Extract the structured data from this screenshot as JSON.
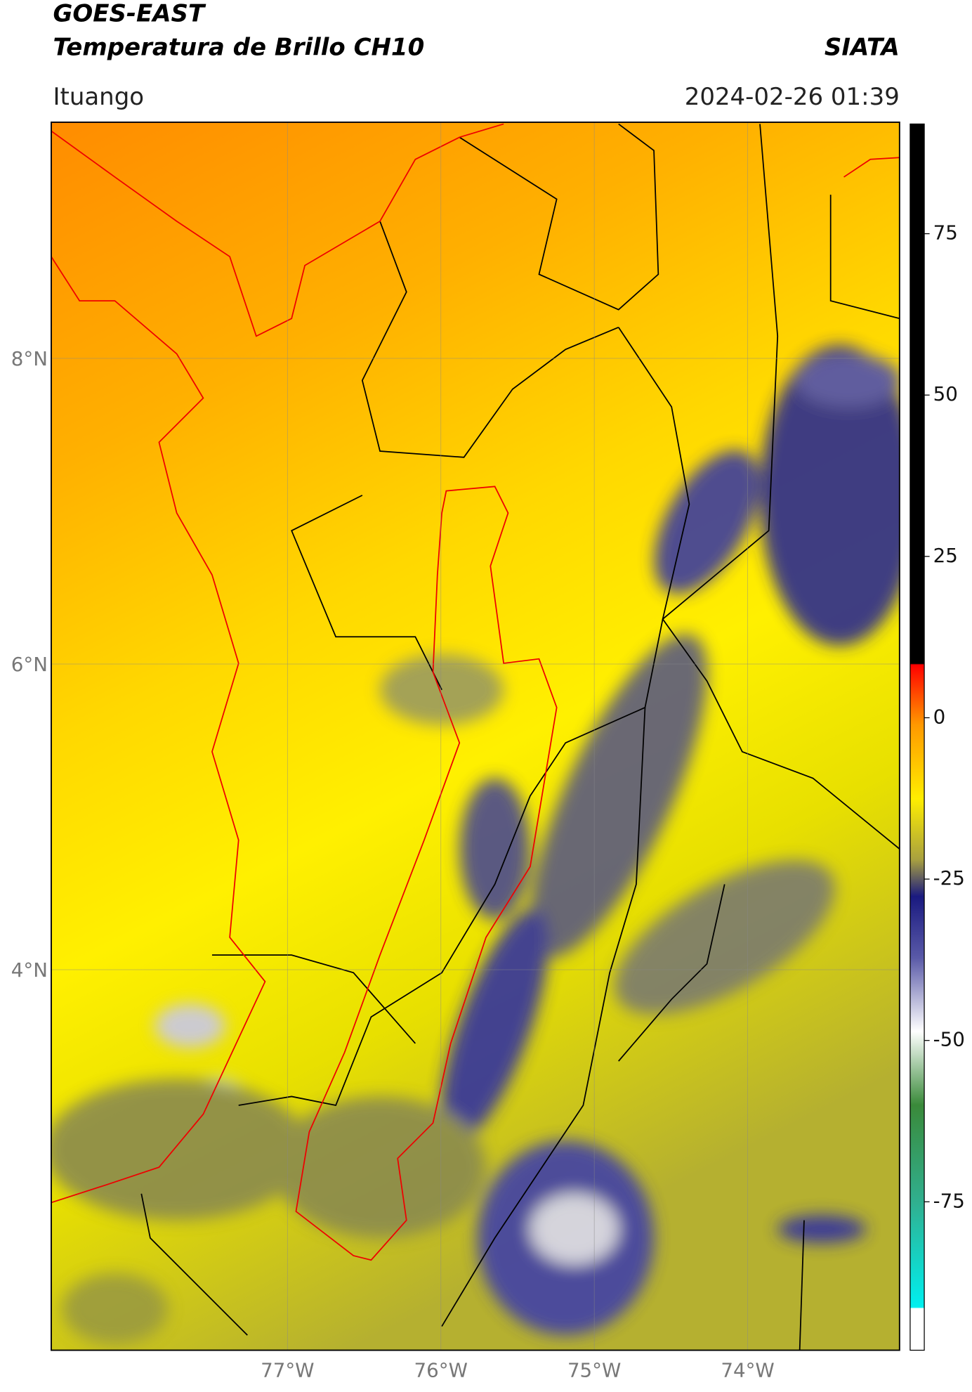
{
  "header": {
    "satellite": "GOES-EAST",
    "product": "Temperatura de Brillo CH10",
    "agency": "SIATA",
    "region": "Ituango",
    "datetime": "2024-02-26 01:39"
  },
  "map": {
    "lonlim": [
      -78.54,
      -73.01
    ],
    "latlim": [
      1.51,
      9.545
    ],
    "lat_ticks": [
      {
        "value": 8,
        "label": "8°N"
      },
      {
        "value": 6,
        "label": "6°N"
      },
      {
        "value": 4,
        "label": "4°N"
      }
    ],
    "lon_ticks": [
      {
        "value": -77,
        "label": "77°W"
      },
      {
        "value": -76,
        "label": "76°W"
      },
      {
        "value": -75,
        "label": "75°W"
      },
      {
        "value": -74,
        "label": "74°W"
      }
    ]
  },
  "colorbar": {
    "lim": [
      -98,
      92
    ],
    "ticks": [
      75,
      50,
      25,
      0,
      -25,
      -50,
      -75
    ]
  }
}
